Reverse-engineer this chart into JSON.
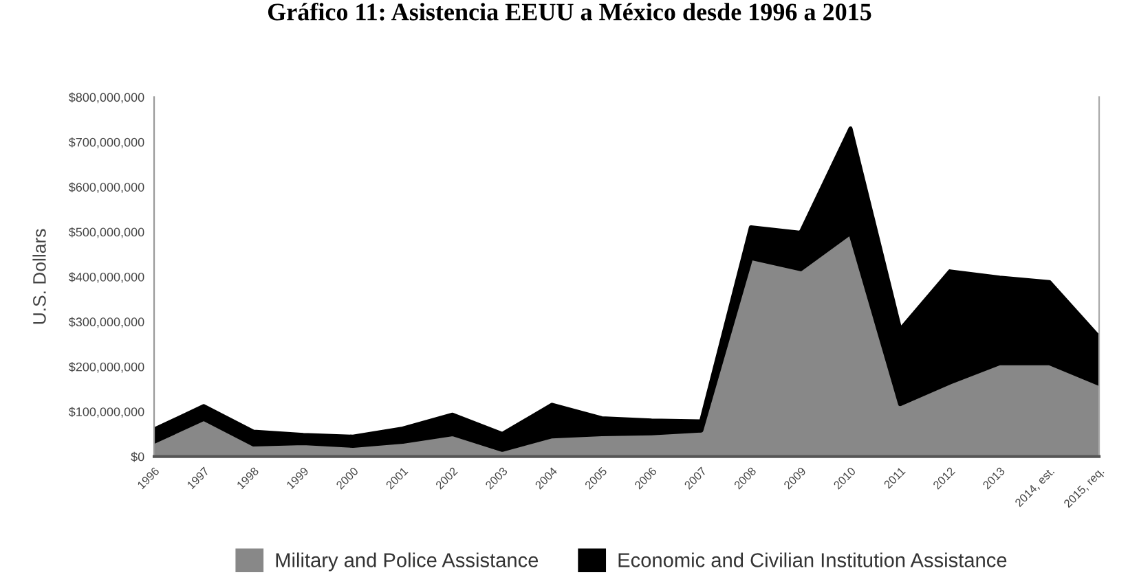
{
  "chart_data": {
    "type": "area",
    "title": "Gráfico 11: Asistencia EEUU a México desde 1996 a 2015",
    "ylabel": "U.S. Dollars",
    "categories": [
      "1996",
      "1997",
      "1998",
      "1999",
      "2000",
      "2001",
      "2002",
      "2003",
      "2004",
      "2005",
      "2006",
      "2007",
      "2008",
      "2009",
      "2010",
      "2011",
      "2012",
      "2013",
      "2014, est.",
      "2015, req."
    ],
    "stacked": true,
    "series": [
      {
        "name": "Military and Police Assistance",
        "color": "#888888",
        "values": [
          33000000,
          84000000,
          27000000,
          30000000,
          24000000,
          33000000,
          50000000,
          15000000,
          45000000,
          50000000,
          52000000,
          58000000,
          442000000,
          417000000,
          498000000,
          117000000,
          165000000,
          208000000,
          208000000,
          162000000
        ]
      },
      {
        "name": "Economic and Civilian Institution Assistance",
        "color": "#000000",
        "values": [
          27000000,
          28000000,
          28000000,
          18000000,
          20000000,
          29000000,
          43000000,
          35000000,
          70000000,
          35000000,
          28000000,
          20000000,
          68000000,
          81000000,
          232000000,
          165000000,
          247000000,
          190000000,
          180000000,
          103000000
        ]
      }
    ],
    "ylim": [
      0,
      800000000
    ],
    "yticks": [
      {
        "value": 0,
        "label": "$0"
      },
      {
        "value": 100000000,
        "label": "$100,000,000"
      },
      {
        "value": 200000000,
        "label": "$200,000,000"
      },
      {
        "value": 300000000,
        "label": "$300,000,000"
      },
      {
        "value": 400000000,
        "label": "$400,000,000"
      },
      {
        "value": 500000000,
        "label": "$500,000,000"
      },
      {
        "value": 600000000,
        "label": "$600,000,000"
      },
      {
        "value": 700000000,
        "label": "$700,000,000"
      },
      {
        "value": 800000000,
        "label": "$800,000,000"
      }
    ],
    "legend": "bottom"
  }
}
